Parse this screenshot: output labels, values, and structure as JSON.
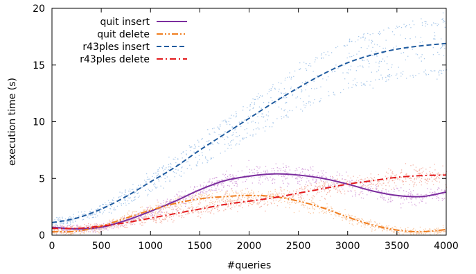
{
  "chart_data": {
    "type": "scatter",
    "xlabel": "#queries",
    "ylabel": "execution time (s)",
    "xlim": [
      0,
      4000
    ],
    "ylim": [
      0,
      20
    ],
    "x_ticks": [
      0,
      500,
      1000,
      1500,
      2000,
      2500,
      3000,
      3500,
      4000
    ],
    "y_ticks": [
      0,
      5,
      10,
      15,
      20
    ],
    "legend_position": "top-left",
    "series": [
      {
        "name": "quit insert",
        "style": "solid",
        "color": "#7b2d9e",
        "scatter_color": "#d7a6dd",
        "x": [
          0,
          250,
          500,
          750,
          1000,
          1250,
          1500,
          1750,
          2000,
          2250,
          2500,
          2750,
          3000,
          3250,
          3500,
          3750,
          4000
        ],
        "y": [
          0.7,
          0.55,
          0.7,
          1.3,
          2.1,
          3.0,
          4.0,
          4.8,
          5.2,
          5.4,
          5.3,
          5.0,
          4.5,
          3.9,
          3.5,
          3.4,
          3.8
        ]
      },
      {
        "name": "quit delete",
        "style": "dash-dot-dot",
        "color": "#f07d1e",
        "scatter_color": "#f9c7a0",
        "x": [
          0,
          250,
          500,
          750,
          1000,
          1250,
          1500,
          1750,
          2000,
          2250,
          2500,
          2750,
          3000,
          3250,
          3500,
          3750,
          4000
        ],
        "y": [
          0.3,
          0.35,
          0.8,
          1.5,
          2.2,
          2.8,
          3.2,
          3.4,
          3.5,
          3.4,
          3.0,
          2.4,
          1.6,
          0.9,
          0.45,
          0.3,
          0.5
        ]
      },
      {
        "name": "r43ples insert",
        "style": "dashed",
        "color": "#1f5b9f",
        "scatter_color": "#a8c8ea",
        "x": [
          0,
          250,
          500,
          750,
          1000,
          1250,
          1500,
          1750,
          2000,
          2250,
          2500,
          2750,
          3000,
          3250,
          3500,
          3750,
          4000
        ],
        "y": [
          1.1,
          1.5,
          2.3,
          3.4,
          4.7,
          6.0,
          7.5,
          8.9,
          10.3,
          11.7,
          13.0,
          14.2,
          15.2,
          15.9,
          16.4,
          16.7,
          16.9
        ]
      },
      {
        "name": "r43ples delete",
        "style": "dash-dot",
        "color": "#e31a1c",
        "scatter_color": "#f5b5a8",
        "x": [
          0,
          250,
          500,
          750,
          1000,
          1250,
          1500,
          1750,
          2000,
          2250,
          2500,
          2750,
          3000,
          3250,
          3500,
          3750,
          4000
        ],
        "y": [
          0.6,
          0.6,
          0.8,
          1.1,
          1.5,
          1.9,
          2.3,
          2.7,
          3.0,
          3.3,
          3.7,
          4.1,
          4.5,
          4.8,
          5.1,
          5.25,
          5.3
        ]
      }
    ]
  }
}
